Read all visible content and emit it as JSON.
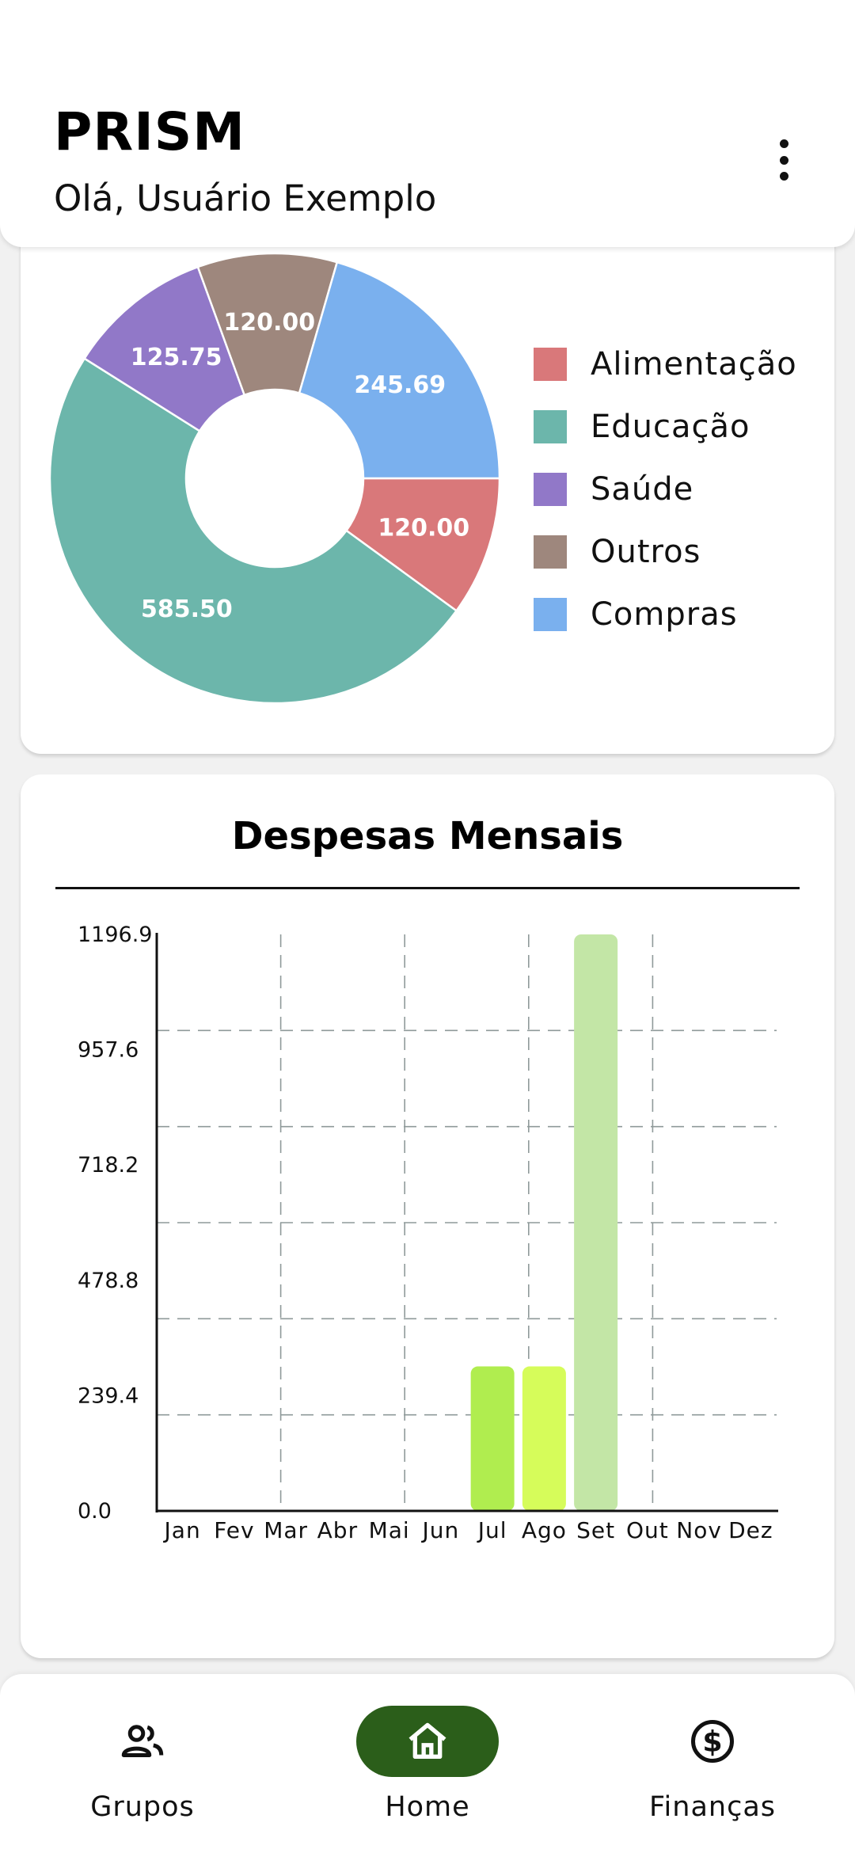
{
  "header": {
    "title": "PRISM",
    "greeting": "Olá, Usuário Exemplo",
    "menu_icon": "more-vert-icon"
  },
  "pie_card": {
    "chart_data": {
      "type": "pie",
      "donut": true,
      "slices": [
        {
          "category": "Alimentação",
          "value": 120.0,
          "label": "120.00",
          "color": "#d9787a"
        },
        {
          "category": "Educação",
          "value": 585.5,
          "label": "585.50",
          "color": "#6cb6ab"
        },
        {
          "category": "Saúde",
          "value": 125.75,
          "label": "125.75",
          "color": "#9178c8"
        },
        {
          "category": "Outros",
          "value": 120.0,
          "label": "120.00",
          "color": "#9e877d"
        },
        {
          "category": "Compras",
          "value": 245.69,
          "label": "245.69",
          "color": "#7ab0ee"
        }
      ],
      "legend_position": "right"
    }
  },
  "bar_card": {
    "chart_data": {
      "type": "bar",
      "title": "Despesas Mensais",
      "categories": [
        "Jan",
        "Fev",
        "Mar",
        "Abr",
        "Mai",
        "Jun",
        "Jul",
        "Ago",
        "Set",
        "Out",
        "Nov",
        "Dez"
      ],
      "values": [
        0,
        0,
        0,
        0,
        0,
        0,
        300,
        300,
        1196.9,
        0,
        0,
        0
      ],
      "bar_colors": {
        "Jul": "#b0ed4f",
        "Ago": "#d6fc5a",
        "Set": "#c3e6a6"
      },
      "y_ticks": [
        "0.0",
        "239.4",
        "478.8",
        "718.2",
        "957.6",
        "1196.9"
      ],
      "ylim": [
        0,
        1196.9
      ],
      "grid": "dashed"
    }
  },
  "nav": {
    "items": [
      {
        "label": "Grupos",
        "icon": "group-icon",
        "active": false
      },
      {
        "label": "Home",
        "icon": "home-icon",
        "active": true
      },
      {
        "label": "Finanças",
        "icon": "dollar-circle-icon",
        "active": false
      }
    ],
    "active_color": "#2b5e1a"
  }
}
